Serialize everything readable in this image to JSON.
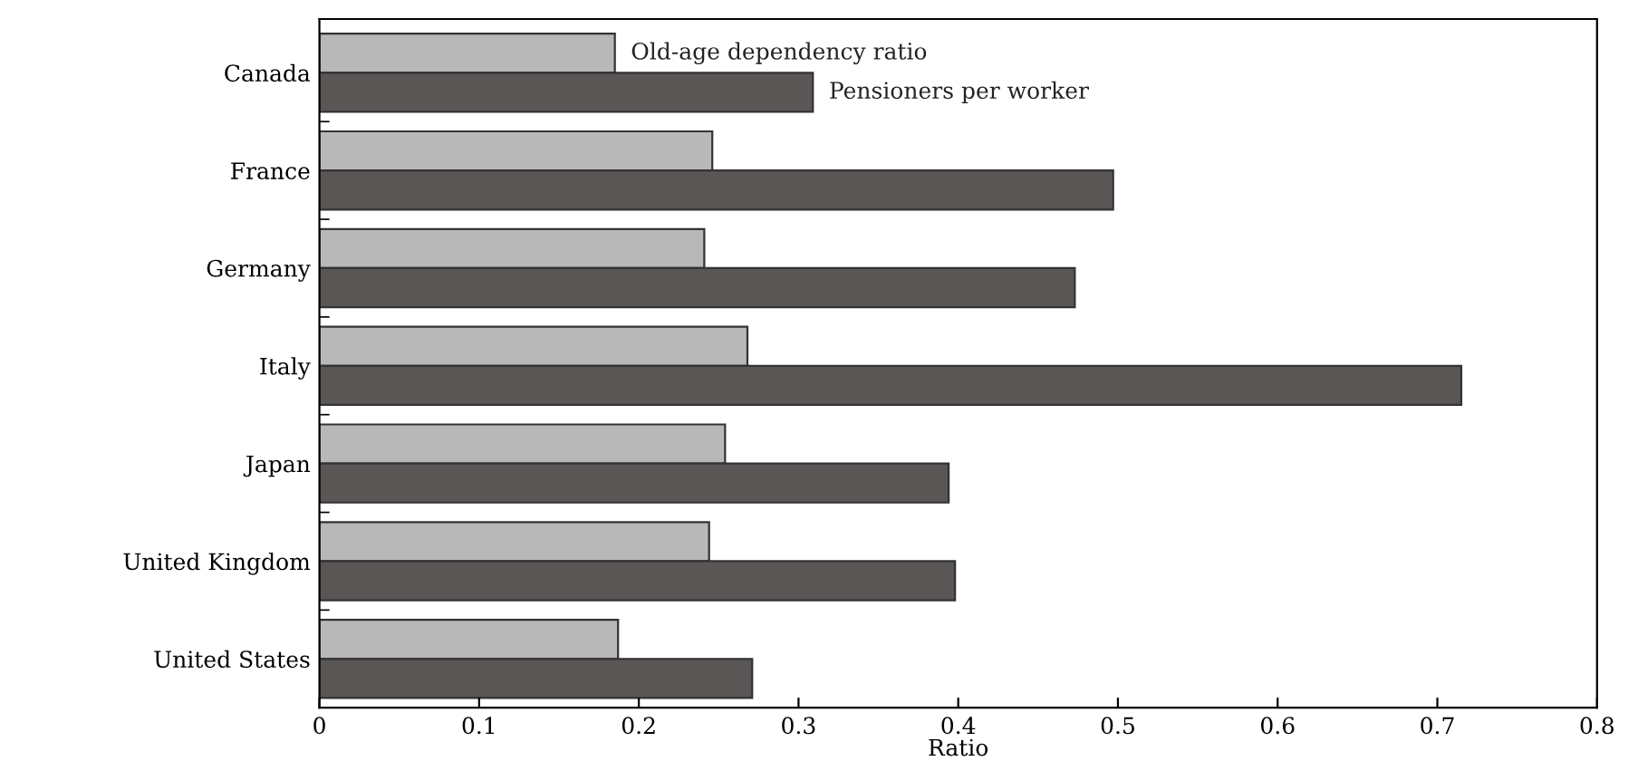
{
  "chart_data": {
    "type": "bar",
    "orientation": "horizontal",
    "xlabel": "Ratio",
    "categories": [
      "Canada",
      "France",
      "Germany",
      "Italy",
      "Japan",
      "United Kingdom",
      "United States"
    ],
    "series": [
      {
        "name": "Old-age dependency ratio",
        "color": "#b8b8b8",
        "values": [
          0.185,
          0.246,
          0.241,
          0.268,
          0.254,
          0.244,
          0.187
        ]
      },
      {
        "name": "Pensioners per worker",
        "color": "#5a5656",
        "values": [
          0.309,
          0.497,
          0.473,
          0.715,
          0.394,
          0.398,
          0.271
        ]
      }
    ],
    "xlim": [
      0,
      0.8
    ],
    "xticks": [
      0,
      0.1,
      0.2,
      0.3,
      0.4,
      0.5,
      0.6,
      0.7,
      0.8
    ],
    "grid": false
  }
}
